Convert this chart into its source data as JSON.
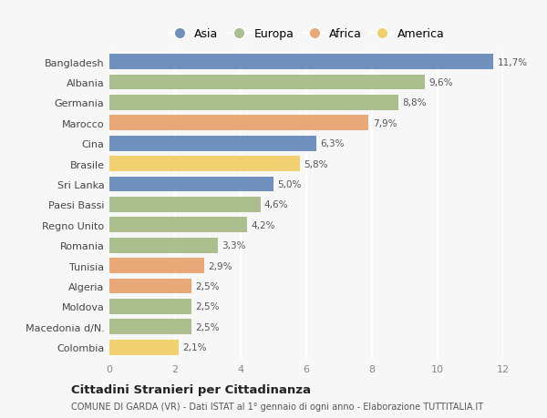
{
  "countries": [
    "Bangladesh",
    "Albania",
    "Germania",
    "Marocco",
    "Cina",
    "Brasile",
    "Sri Lanka",
    "Paesi Bassi",
    "Regno Unito",
    "Romania",
    "Tunisia",
    "Algeria",
    "Moldova",
    "Macedonia d/N.",
    "Colombia"
  ],
  "values": [
    11.7,
    9.6,
    8.8,
    7.9,
    6.3,
    5.8,
    5.0,
    4.6,
    4.2,
    3.3,
    2.9,
    2.5,
    2.5,
    2.5,
    2.1
  ],
  "continents": [
    "Asia",
    "Europa",
    "Europa",
    "Africa",
    "Asia",
    "America",
    "Asia",
    "Europa",
    "Europa",
    "Europa",
    "Africa",
    "Africa",
    "Europa",
    "Europa",
    "America"
  ],
  "colors": {
    "Asia": "#7090be",
    "Europa": "#abbe8e",
    "Africa": "#e8a878",
    "America": "#f0d070"
  },
  "legend_order": [
    "Asia",
    "Europa",
    "Africa",
    "America"
  ],
  "title": "Cittadini Stranieri per Cittadinanza",
  "subtitle": "COMUNE DI GARDA (VR) - Dati ISTAT al 1° gennaio di ogni anno - Elaborazione TUTTITALIA.IT",
  "xlim": [
    0,
    12
  ],
  "xticks": [
    0,
    2,
    4,
    6,
    8,
    10,
    12
  ],
  "bar_height": 0.75,
  "background_color": "#f7f7f7",
  "grid_color": "#ffffff",
  "label_color": "#555555",
  "tick_color": "#888888"
}
